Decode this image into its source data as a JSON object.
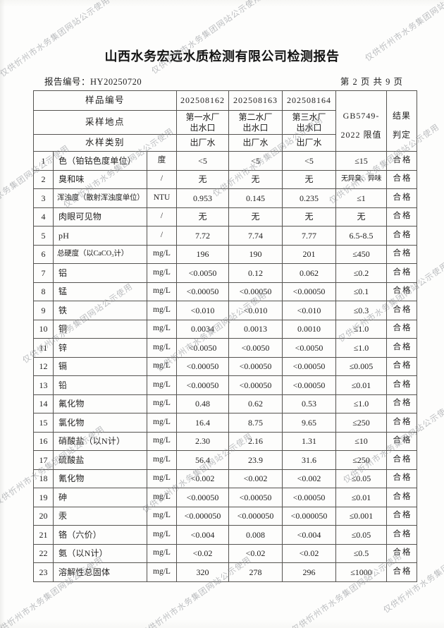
{
  "watermark": {
    "text": "仅供忻州市水务集团网站公示使用"
  },
  "header": {
    "title": "山西水务宏远水质检测有限公司检测报告",
    "report_no_label": "报告编号：",
    "report_no": "HY20250720",
    "page_info": "第 2 页 共 9 页"
  },
  "table": {
    "sample_id_label": "样品编号",
    "sample_ids": [
      "202508162",
      "202508163",
      "202508164"
    ],
    "location_label": "采样地点",
    "locations": [
      "第一水厂\n出水口",
      "第二水厂\n出水口",
      "第三水厂\n出水口"
    ],
    "type_label": "水样类别",
    "types": [
      "出厂水",
      "出厂水",
      "出厂水"
    ],
    "limit_header": "GB5749-\n2022 限值",
    "result_header": "结果\n判定",
    "rows": [
      {
        "no": "1",
        "name": "色（铂钴色度单位）",
        "unit": "度",
        "v1": "<5",
        "v2": "<5",
        "v3": "<5",
        "limit": "≤15",
        "result": "合格"
      },
      {
        "no": "2",
        "name": "臭和味",
        "unit": "/",
        "v1": "无",
        "v2": "无",
        "v3": "无",
        "limit": "无异臭、异味",
        "result": "合格"
      },
      {
        "no": "3",
        "name": "浑浊度（散射浑浊度单位）",
        "unit": "NTU",
        "v1": "0.953",
        "v2": "0.145",
        "v3": "0.235",
        "limit": "≤1",
        "result": "合格"
      },
      {
        "no": "4",
        "name": "肉眼可见物",
        "unit": "/",
        "v1": "无",
        "v2": "无",
        "v3": "无",
        "limit": "无",
        "result": "合格"
      },
      {
        "no": "5",
        "name": "pH",
        "unit": "/",
        "v1": "7.72",
        "v2": "7.74",
        "v3": "7.77",
        "limit": "6.5-8.5",
        "result": "合格"
      },
      {
        "no": "6",
        "name": "总硬度（以CaCO₃计）",
        "unit": "mg/L",
        "v1": "196",
        "v2": "190",
        "v3": "201",
        "limit": "≤450",
        "result": "合格"
      },
      {
        "no": "7",
        "name": "铝",
        "unit": "mg/L",
        "v1": "<0.0050",
        "v2": "0.12",
        "v3": "0.062",
        "limit": "≤0.2",
        "result": "合格"
      },
      {
        "no": "8",
        "name": "锰",
        "unit": "mg/L",
        "v1": "<0.00050",
        "v2": "<0.00050",
        "v3": "<0.00050",
        "limit": "≤0.1",
        "result": "合格"
      },
      {
        "no": "9",
        "name": "铁",
        "unit": "mg/L",
        "v1": "<0.010",
        "v2": "<0.010",
        "v3": "<0.010",
        "limit": "≤0.3",
        "result": "合格"
      },
      {
        "no": "10",
        "name": "铜",
        "unit": "mg/L",
        "v1": "0.0034",
        "v2": "0.0013",
        "v3": "0.0010",
        "limit": "≤1.0",
        "result": "合格"
      },
      {
        "no": "11",
        "name": "锌",
        "unit": "mg/L",
        "v1": "<0.0050",
        "v2": "<0.0050",
        "v3": "<0.0050",
        "limit": "≤1.0",
        "result": "合格"
      },
      {
        "no": "12",
        "name": "镉",
        "unit": "mg/L",
        "v1": "<0.00050",
        "v2": "<0.00050",
        "v3": "<0.00050",
        "limit": "≤0.005",
        "result": "合格"
      },
      {
        "no": "13",
        "name": "铅",
        "unit": "mg/L",
        "v1": "<0.00050",
        "v2": "<0.00050",
        "v3": "<0.00050",
        "limit": "≤0.01",
        "result": "合格"
      },
      {
        "no": "14",
        "name": "氟化物",
        "unit": "mg/L",
        "v1": "0.48",
        "v2": "0.62",
        "v3": "0.53",
        "limit": "≤1.0",
        "result": "合格"
      },
      {
        "no": "15",
        "name": "氯化物",
        "unit": "mg/L",
        "v1": "16.4",
        "v2": "8.75",
        "v3": "9.65",
        "limit": "≤250",
        "result": "合格"
      },
      {
        "no": "16",
        "name": "硝酸盐（以N计）",
        "unit": "mg/L",
        "v1": "2.30",
        "v2": "2.16",
        "v3": "1.31",
        "limit": "≤10",
        "result": "合格"
      },
      {
        "no": "17",
        "name": "硫酸盐",
        "unit": "mg/L",
        "v1": "56.4",
        "v2": "23.9",
        "v3": "31.6",
        "limit": "≤250",
        "result": "合格"
      },
      {
        "no": "18",
        "name": "氰化物",
        "unit": "mg/L",
        "v1": "<0.002",
        "v2": "<0.002",
        "v3": "<0.002",
        "limit": "≤0.05",
        "result": "合格"
      },
      {
        "no": "19",
        "name": "砷",
        "unit": "mg/L",
        "v1": "<0.00050",
        "v2": "<0.00050",
        "v3": "<0.00050",
        "limit": "≤0.01",
        "result": "合格"
      },
      {
        "no": "20",
        "name": "汞",
        "unit": "mg/L",
        "v1": "<0.000050",
        "v2": "<0.000050",
        "v3": "<0.000050",
        "limit": "≤0.001",
        "result": "合格"
      },
      {
        "no": "21",
        "name": "铬（六价）",
        "unit": "mg/L",
        "v1": "<0.004",
        "v2": "0.008",
        "v3": "<0.004",
        "limit": "≤0.05",
        "result": "合格"
      },
      {
        "no": "22",
        "name": "氨（以N计）",
        "unit": "mg/L",
        "v1": "<0.02",
        "v2": "<0.02",
        "v3": "<0.02",
        "limit": "≤0.5",
        "result": "合格"
      },
      {
        "no": "23",
        "name": "溶解性总固体",
        "unit": "mg/L",
        "v1": "320",
        "v2": "278",
        "v3": "296",
        "limit": "≤1000",
        "result": "合格"
      }
    ]
  }
}
